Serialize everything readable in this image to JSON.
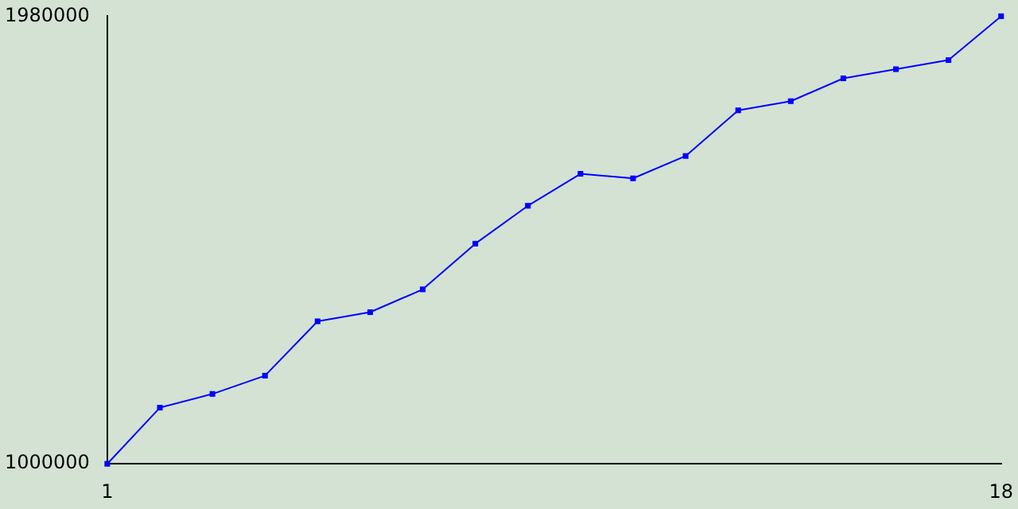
{
  "chart_data": {
    "type": "line",
    "x": [
      1,
      2,
      3,
      4,
      5,
      6,
      7,
      8,
      9,
      10,
      11,
      12,
      13,
      14,
      15,
      16,
      17,
      18
    ],
    "series": [
      {
        "color": "#0000ff",
        "values": [
          1000000,
          1123000,
          1153000,
          1193000,
          1312000,
          1332000,
          1382000,
          1482000,
          1565000,
          1635000,
          1625000,
          1674000,
          1774000,
          1794000,
          1844000,
          1864000,
          1884000,
          1980000
        ]
      }
    ],
    "xlim": [
      1,
      18
    ],
    "xticks": [
      1,
      18
    ],
    "ylim": [
      1000000,
      1980000
    ],
    "yticks": [
      1000000,
      1980000
    ],
    "grid": false,
    "legend": false,
    "marker": "square",
    "line_style": "solid"
  }
}
